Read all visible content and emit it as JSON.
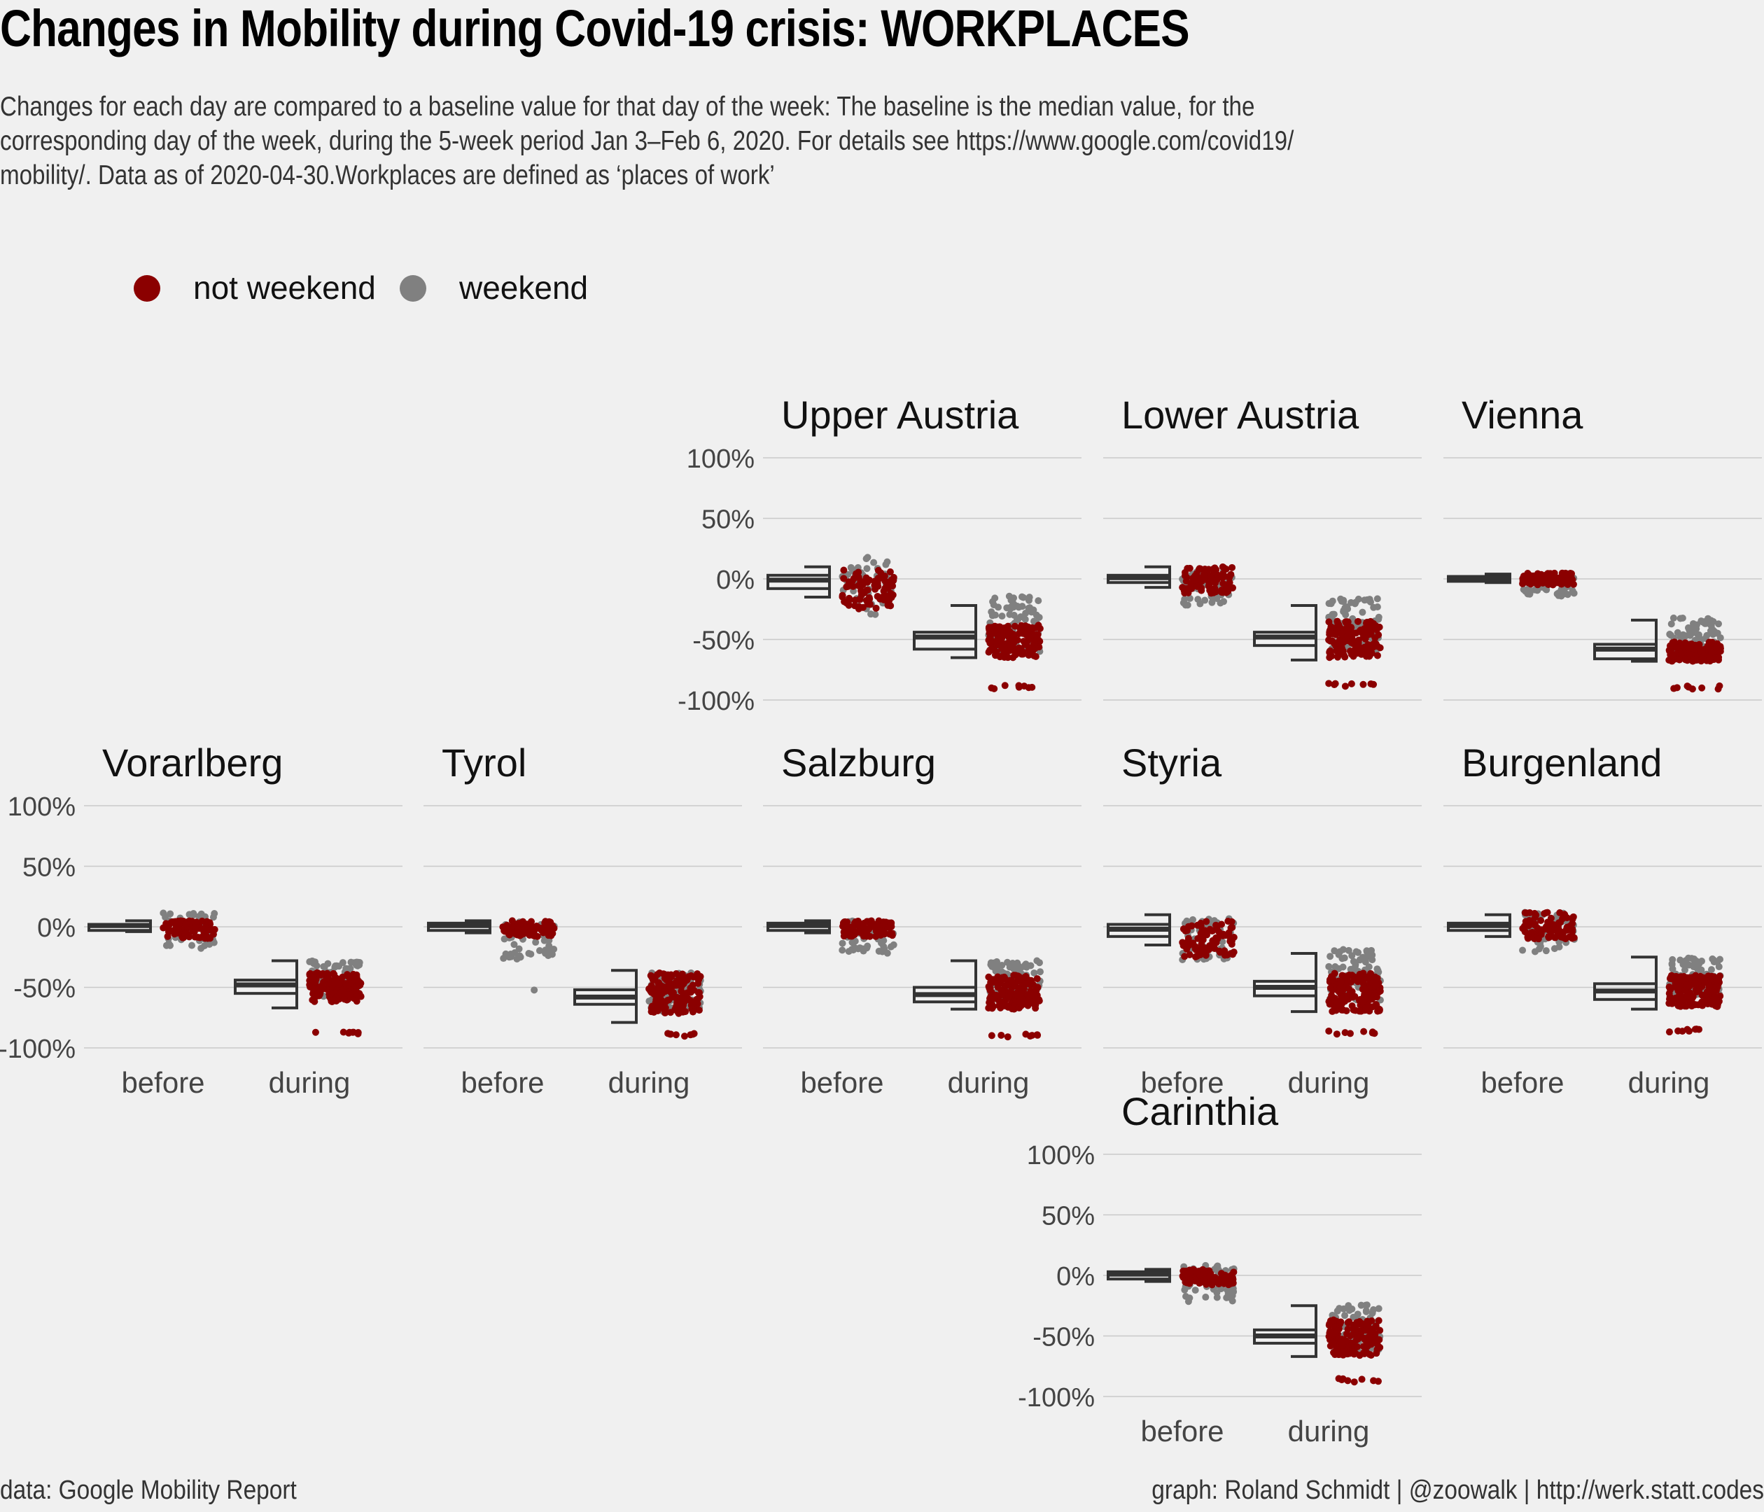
{
  "chart_data": {
    "type": "jitter-boxplot",
    "title": "Changes in Mobility during Covid-19 crisis: WORKPLACES",
    "subtitle": "Changes for each day are compared to a baseline value for that day of the week: The baseline is the median value, for the\ncorresponding day of the week, during the 5-week period Jan 3–Feb 6, 2020. For details see https://www.google.com/covid19/\nmobility/. Data as of 2020-04-30.Workplaces are defined as ‘places of work’",
    "caption_left": "data: Google Mobility Report",
    "caption_right": "graph: Roland Schmidt | @zoowalk | http://werk.statt.codes",
    "legend": [
      {
        "label": "not weekend",
        "color": "#8b0000"
      },
      {
        "label": "weekend",
        "color": "#808080"
      }
    ],
    "legend_position": "top-left",
    "periods": [
      "before",
      "during"
    ],
    "y_ticks": [
      100,
      50,
      0,
      -50,
      -100
    ],
    "y_tick_labels": [
      "100%",
      "50%",
      "0%",
      "-50%",
      "-100%"
    ],
    "ylim": [
      -100,
      100
    ],
    "grid": true,
    "panels": [
      {
        "name": "Upper Austria",
        "row": 0,
        "col": 2,
        "y_axis": true,
        "x_axis": false,
        "before": {
          "wd": [
            -25,
            8
          ],
          "we": [
            -30,
            18
          ],
          "box": [
            -8,
            -5,
            -1,
            3,
            10,
            -15
          ]
        },
        "during": {
          "wd": [
            -65,
            -38
          ],
          "we": [
            -62,
            -14
          ],
          "low": -88,
          "box": [
            -58,
            -53,
            -48,
            -44,
            -22,
            -65
          ]
        }
      },
      {
        "name": "Lower Austria",
        "row": 0,
        "col": 3,
        "y_axis": false,
        "x_axis": false,
        "before": {
          "wd": [
            -12,
            10
          ],
          "we": [
            -22,
            8
          ],
          "box": [
            -3,
            -1,
            1,
            3,
            10,
            -7
          ]
        },
        "during": {
          "wd": [
            -65,
            -35
          ],
          "we": [
            -60,
            -15
          ],
          "low": -86,
          "box": [
            -55,
            -52,
            -48,
            -44,
            -22,
            -67
          ]
        }
      },
      {
        "name": "Vienna",
        "row": 0,
        "col": 4,
        "y_axis": false,
        "x_axis": false,
        "before": {
          "wd": [
            -5,
            5
          ],
          "we": [
            -15,
            4
          ],
          "box": [
            -2,
            -1,
            1,
            2,
            4,
            -3
          ]
        },
        "during": {
          "wd": [
            -68,
            -52
          ],
          "we": [
            -62,
            -32
          ],
          "low": -88,
          "box": [
            -66,
            -63,
            -58,
            -54,
            -34,
            -68
          ]
        }
      },
      {
        "name": "Vorarlberg",
        "row": 1,
        "col": 0,
        "y_axis": true,
        "x_axis": true,
        "before": {
          "wd": [
            -10,
            5
          ],
          "we": [
            -18,
            12
          ],
          "box": [
            -3,
            -1,
            1,
            2,
            5,
            -4
          ]
        },
        "during": {
          "wd": [
            -62,
            -38
          ],
          "we": [
            -58,
            -28
          ],
          "low": -87,
          "box": [
            -55,
            -52,
            -48,
            -44,
            -28,
            -67
          ]
        }
      },
      {
        "name": "Tyrol",
        "row": 1,
        "col": 1,
        "y_axis": false,
        "x_axis": true,
        "before": {
          "wd": [
            -8,
            5
          ],
          "we": [
            -28,
            5
          ],
          "low": -50,
          "box": [
            -3,
            -1,
            1,
            3,
            5,
            -5
          ]
        },
        "during": {
          "wd": [
            -72,
            -38
          ],
          "we": [
            -70,
            -38
          ],
          "low": -88,
          "box": [
            -64,
            -60,
            -58,
            -52,
            -36,
            -79
          ]
        }
      },
      {
        "name": "Salzburg",
        "row": 1,
        "col": 2,
        "y_axis": false,
        "x_axis": true,
        "before": {
          "wd": [
            -8,
            5
          ],
          "we": [
            -22,
            5
          ],
          "box": [
            -3,
            -1,
            1,
            3,
            5,
            -5
          ]
        },
        "during": {
          "wd": [
            -68,
            -40
          ],
          "we": [
            -62,
            -28
          ],
          "low": -88,
          "box": [
            -62,
            -58,
            -56,
            -50,
            -28,
            -68
          ]
        }
      },
      {
        "name": "Styria",
        "row": 1,
        "col": 3,
        "y_axis": false,
        "x_axis": true,
        "before": {
          "wd": [
            -25,
            5
          ],
          "we": [
            -28,
            8
          ],
          "box": [
            -8,
            -5,
            -2,
            2,
            10,
            -15
          ]
        },
        "during": {
          "wd": [
            -70,
            -38
          ],
          "we": [
            -62,
            -18
          ],
          "low": -86,
          "box": [
            -57,
            -54,
            -50,
            -45,
            -22,
            -70
          ]
        }
      },
      {
        "name": "Burgenland",
        "row": 1,
        "col": 4,
        "y_axis": false,
        "x_axis": true,
        "before": {
          "wd": [
            -10,
            12
          ],
          "we": [
            -22,
            12
          ],
          "box": [
            -3,
            -1,
            1,
            3,
            10,
            -8
          ]
        },
        "during": {
          "wd": [
            -66,
            -40
          ],
          "we": [
            -62,
            -24
          ],
          "low": -84,
          "box": [
            -60,
            -57,
            -53,
            -47,
            -25,
            -68
          ]
        }
      },
      {
        "name": "Carinthia",
        "row": 2,
        "col": 3,
        "y_axis": true,
        "x_axis": true,
        "before": {
          "wd": [
            -8,
            5
          ],
          "we": [
            -22,
            10
          ],
          "box": [
            -3,
            -1,
            1,
            3,
            5,
            -5
          ]
        },
        "during": {
          "wd": [
            -66,
            -36
          ],
          "we": [
            -64,
            -24
          ],
          "low": -85,
          "box": [
            -56,
            -53,
            -50,
            -45,
            -25,
            -67
          ]
        }
      }
    ]
  }
}
